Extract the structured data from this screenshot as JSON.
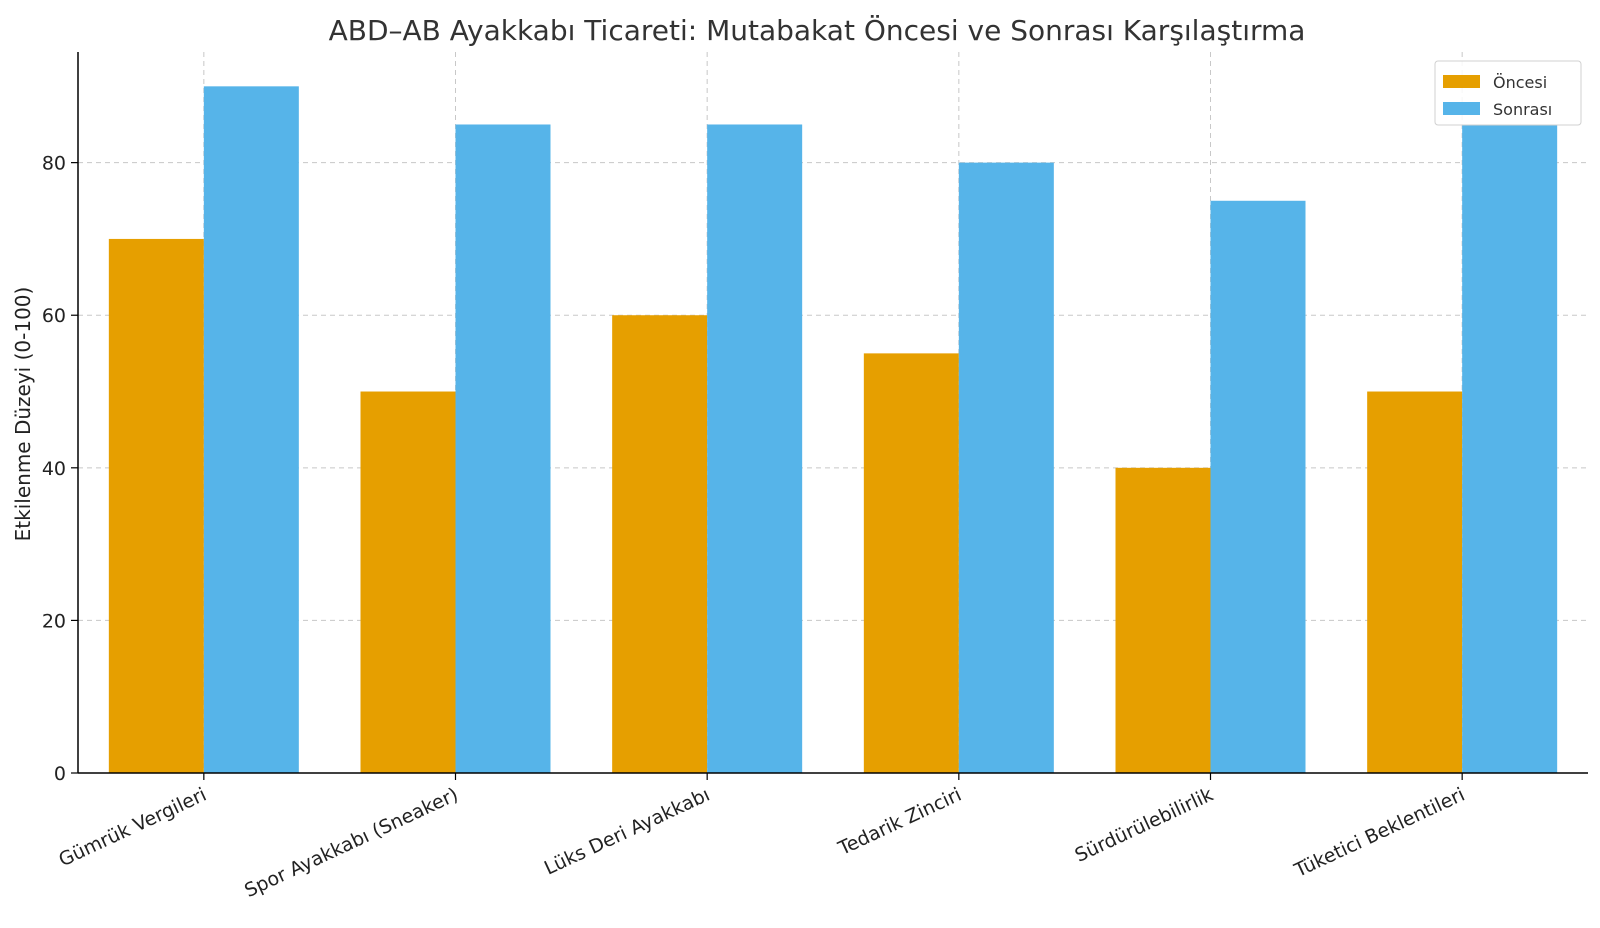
{
  "chart_data": {
    "type": "bar",
    "title": "ABD–AB Ayakkabı Ticareti: Mutabakat Öncesi ve Sonrası Karşılaştırma",
    "xlabel": "",
    "ylabel": "Etkilenme Düzeyi (0-100)",
    "categories": [
      "Gümrük Vergileri",
      "Spor Ayakkabı (Sneaker)",
      "Lüks Deri Ayakkabı",
      "Tedarik Zinciri",
      "Sürdürülebilirlik",
      "Tüketici Beklentileri"
    ],
    "series": [
      {
        "name": "Öncesi",
        "color": "#E69F00",
        "values": [
          70,
          50,
          60,
          55,
          40,
          50
        ]
      },
      {
        "name": "Sonrası",
        "color": "#56B4E9",
        "values": [
          90,
          85,
          85,
          80,
          75,
          85
        ]
      }
    ],
    "ylim": [
      0,
      94.5
    ],
    "yticks": [
      0,
      20,
      40,
      60,
      80
    ],
    "grid": true,
    "legend_position": "top-right"
  }
}
